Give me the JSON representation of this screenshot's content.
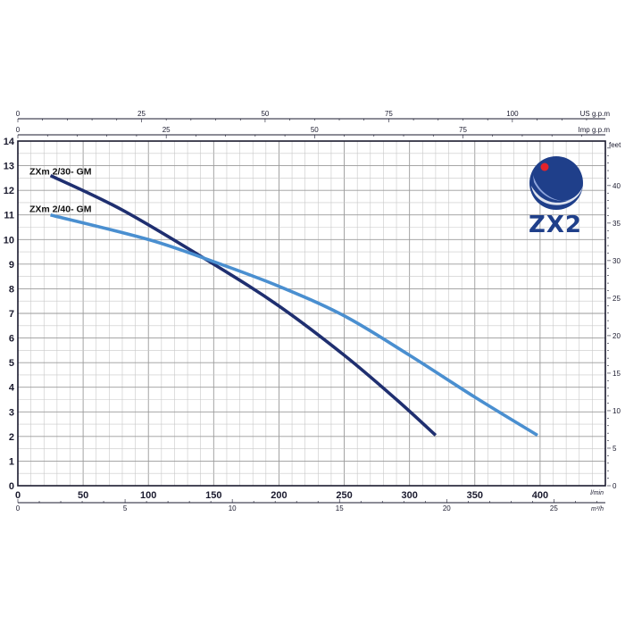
{
  "chart_data": {
    "type": "line",
    "x": {
      "label": "m³/h",
      "range": [
        0,
        450
      ],
      "ticks": [
        0,
        50,
        100,
        150,
        200,
        250,
        300,
        350,
        400
      ]
    },
    "y_left": {
      "label": "",
      "range": [
        0,
        14
      ],
      "ticks": [
        0,
        1,
        2,
        3,
        4,
        5,
        6,
        7,
        8,
        9,
        10,
        11,
        12,
        13,
        14
      ]
    },
    "y_right": {
      "label": "feet",
      "ticks": [
        0,
        5,
        10,
        15,
        20,
        25,
        30,
        35,
        40
      ]
    },
    "top_axis_1": {
      "label": "US g.p.m",
      "ticks": [
        0,
        25,
        50,
        75,
        100
      ]
    },
    "top_axis_2": {
      "label": "Imp g.p.m",
      "ticks": [
        0,
        25,
        50,
        75
      ]
    },
    "bottom_axis_2": {
      "label": "m³/h",
      "ticks": [
        0,
        5,
        10,
        15,
        20,
        25
      ]
    },
    "bottom_axis_1_unit": "l/min",
    "grid": true,
    "series": [
      {
        "name": "ZXm 2/30- GM",
        "color": "#1f2f70",
        "x": [
          25,
          80,
          150,
          200,
          250,
          290,
          320
        ],
        "y": [
          12.6,
          11.2,
          9.0,
          7.3,
          5.3,
          3.5,
          2.05
        ]
      },
      {
        "name": "ZXm 2/40- GM",
        "color": "#4a8fd0",
        "x": [
          25,
          100,
          150,
          200,
          250,
          300,
          350,
          398
        ],
        "y": [
          11.0,
          10.0,
          9.1,
          8.1,
          6.9,
          5.3,
          3.6,
          2.05
        ]
      }
    ]
  },
  "logo": {
    "text": "ZX2",
    "accent": "#e3232b",
    "brand": "#1f3f8a"
  }
}
